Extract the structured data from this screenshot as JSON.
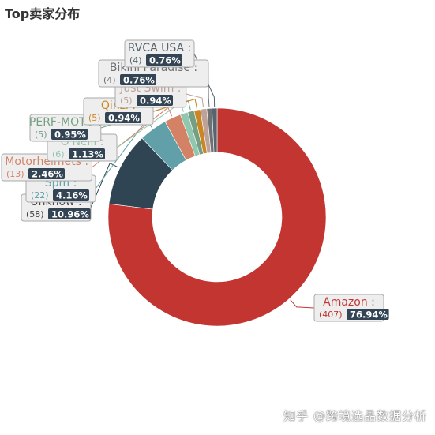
{
  "chart_data": {
    "type": "pie",
    "donut": true,
    "title": "Top卖家分布",
    "legend": "none",
    "slices": [
      {
        "name": "Amazon",
        "count": "407",
        "percent": "76.94%",
        "value": 76.94,
        "color": "#c23531"
      },
      {
        "name": "Unknow",
        "count": "58",
        "percent": "10.96%",
        "value": 10.96,
        "color": "#2f4554"
      },
      {
        "name": "Spm",
        "count": "22",
        "percent": "4.16%",
        "value": 4.16,
        "color": "#61a0a8"
      },
      {
        "name": "Motorhelmets",
        "count": "13",
        "percent": "2.46%",
        "value": 2.46,
        "color": "#d48265"
      },
      {
        "name": "O'Neill",
        "count": "6",
        "percent": "1.13%",
        "value": 1.13,
        "color": "#91c7ae"
      },
      {
        "name": "PERF-MOTO",
        "count": "5",
        "percent": "0.95%",
        "value": 0.95,
        "color": "#749f83"
      },
      {
        "name": "Qinzi",
        "count": "5",
        "percent": "0.94%",
        "value": 0.94,
        "color": "#ca8622"
      },
      {
        "name": "Just Swim",
        "count": "5",
        "percent": "0.94%",
        "value": 0.94,
        "color": "#bda29a"
      },
      {
        "name": "Bikini Paradise",
        "count": "4",
        "percent": "0.76%",
        "value": 0.76,
        "color": "#6e7074"
      },
      {
        "name": "RVCA USA",
        "count": "4",
        "percent": "0.76%",
        "value": 0.76,
        "color": "#546570"
      }
    ]
  },
  "watermark": "知乎 @跨境选品数据分析"
}
